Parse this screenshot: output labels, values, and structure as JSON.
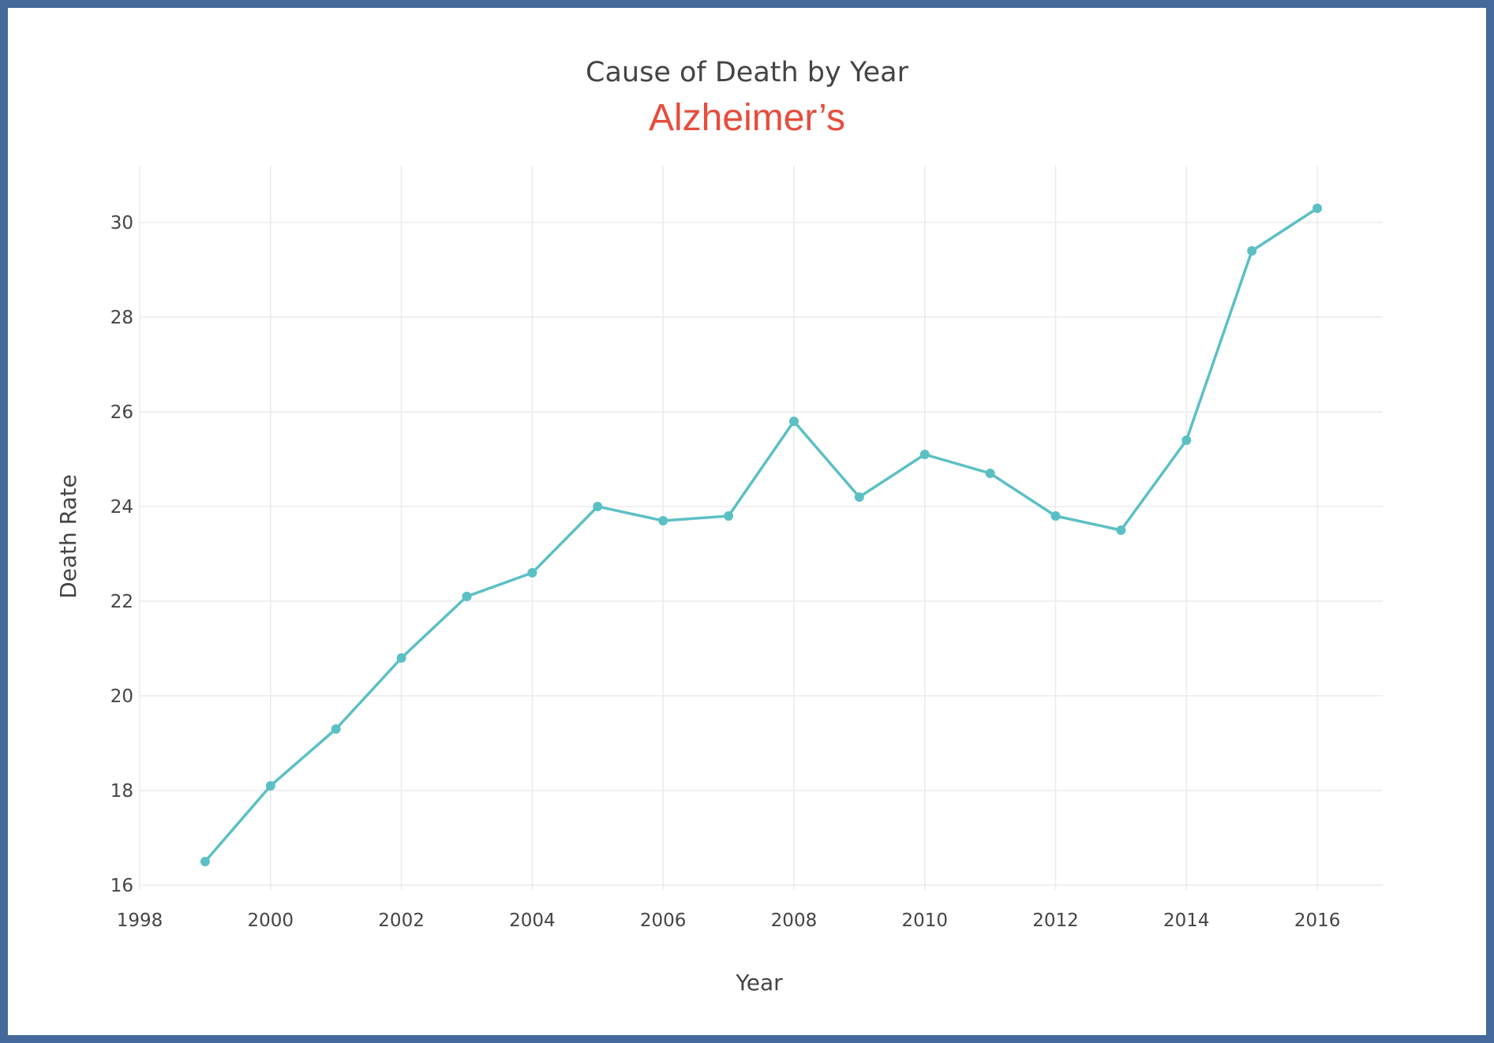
{
  "chart_data": {
    "type": "line",
    "title": "Cause of Death by Year",
    "subtitle": "Alzheimer’s",
    "xlabel": "Year",
    "ylabel": "Death Rate",
    "xlim": [
      1998,
      2017
    ],
    "ylim": [
      15.9,
      31.2
    ],
    "xticks": [
      1998,
      2000,
      2002,
      2004,
      2006,
      2008,
      2010,
      2012,
      2014,
      2016
    ],
    "yticks": [
      16,
      18,
      20,
      22,
      24,
      26,
      28,
      30
    ],
    "grid": true,
    "legend": "none",
    "series": [
      {
        "color": "#5bc0c4",
        "x": [
          1999,
          2000,
          2001,
          2002,
          2003,
          2004,
          2005,
          2006,
          2007,
          2008,
          2009,
          2010,
          2011,
          2012,
          2013,
          2014,
          2015,
          2016
        ],
        "y": [
          16.5,
          18.1,
          19.3,
          20.8,
          22.1,
          22.6,
          24.0,
          23.7,
          23.8,
          25.8,
          24.2,
          25.1,
          24.7,
          23.8,
          23.5,
          25.4,
          29.4,
          30.3
        ]
      }
    ]
  },
  "colors": {
    "frame": "#45699a",
    "line": "#5bc0c4",
    "subtitle": "#e74c3c",
    "grid": "#ebebeb",
    "text": "#444444"
  }
}
